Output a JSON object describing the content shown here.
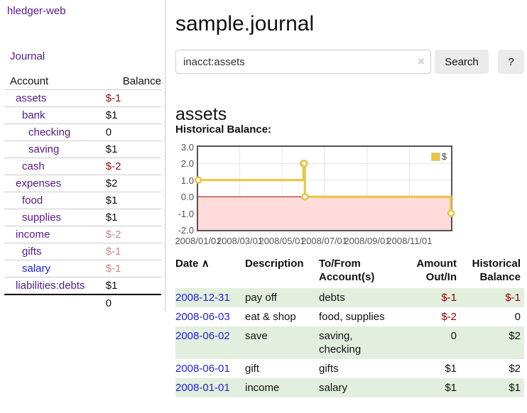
{
  "app": {
    "brand": "hledger-web",
    "nav_journal": "Journal"
  },
  "colors": {
    "visited_link_purple": "#551a8b",
    "link_blue": "#2222dd",
    "negative_strong": "#8b1414",
    "negative_muted": "#c4898c",
    "negative_table": "#8b0000",
    "row_green": "#e3efde",
    "button_gray": "#ebebeb",
    "series_yellow": "#edc240",
    "negative_region_pink": "#ffdbdb"
  },
  "sidebar": {
    "header": {
      "account": "Account",
      "balance": "Balance"
    },
    "accounts": [
      {
        "name": "assets",
        "balance": "$-1"
      },
      {
        "name": "bank",
        "balance": "$1"
      },
      {
        "name": "checking",
        "balance": "0"
      },
      {
        "name": "saving",
        "balance": "$1"
      },
      {
        "name": "cash",
        "balance": "$-2"
      },
      {
        "name": "expenses",
        "balance": "$2"
      },
      {
        "name": "food",
        "balance": "$1"
      },
      {
        "name": "supplies",
        "balance": "$1"
      },
      {
        "name": "income",
        "balance": "$-2"
      },
      {
        "name": "gifts",
        "balance": "$-1"
      },
      {
        "name": "salary",
        "balance": "$-1"
      },
      {
        "name": "liabilities:debts",
        "balance": "$1"
      }
    ],
    "total": "0"
  },
  "header": {
    "title": "sample.journal"
  },
  "search": {
    "value": "inacct:assets",
    "clear_icon": "×",
    "button_label": "Search",
    "help_label": "?"
  },
  "register": {
    "heading": "assets",
    "chart_label": "Historical Balance:",
    "table": {
      "headers": {
        "date": "Date",
        "sort_icon": "∧",
        "description": "Description",
        "accounts": "To/From Account(s)",
        "amount": "Amount Out/In",
        "balance": "Historical Balance"
      },
      "rows": [
        {
          "date": "2008-12-31",
          "description": "pay off",
          "accounts": "debts",
          "amount": "$-1",
          "balance": "$-1"
        },
        {
          "date": "2008-06-03",
          "description": "eat & shop",
          "accounts": "food, supplies",
          "amount": "$-2",
          "balance": "0"
        },
        {
          "date": "2008-06-02",
          "description": "save",
          "accounts": "saving, checking",
          "amount": "0",
          "balance": "$2"
        },
        {
          "date": "2008-06-01",
          "description": "gift",
          "accounts": "gifts",
          "amount": "$1",
          "balance": "$2"
        },
        {
          "date": "2008-01-01",
          "description": "income",
          "accounts": "salary",
          "amount": "$1",
          "balance": "$1"
        }
      ]
    }
  },
  "chart_data": {
    "type": "line",
    "title": "Historical Balance",
    "steps": true,
    "series": [
      {
        "name": "$",
        "color": "#edc240",
        "points": [
          [
            "2008-01-01",
            1
          ],
          [
            "2008-06-01",
            2
          ],
          [
            "2008-06-02",
            2
          ],
          [
            "2008-06-03",
            0
          ],
          [
            "2008-12-31",
            -1
          ]
        ]
      }
    ],
    "xrange": [
      "2008-01-01",
      "2008-12-31"
    ],
    "ylim": [
      -2,
      3
    ],
    "yticks": [
      {
        "label": "3.0",
        "value": 3
      },
      {
        "label": "2.0",
        "value": 2
      },
      {
        "label": "1.0",
        "value": 1
      },
      {
        "label": "0.0",
        "value": 0
      },
      {
        "label": "-1.0",
        "value": -1
      },
      {
        "label": "-2.0",
        "value": -2
      }
    ],
    "xticks": [
      {
        "label": "2008/01/01",
        "date": "2008-01-01"
      },
      {
        "label": "2008/03/01",
        "date": "2008-03-01"
      },
      {
        "label": "2008/05/01",
        "date": "2008-05-01"
      },
      {
        "label": "2008/07/01",
        "date": "2008-07-01"
      },
      {
        "label": "2008/09/01",
        "date": "2008-09-01"
      },
      {
        "label": "2008/11/01",
        "date": "2008-11-01"
      }
    ],
    "grid": true,
    "legend_position": "top-right",
    "negative_fill": "#ffdbdb",
    "zero_line_color": "#aa0000",
    "grid_color": "#e6e6e6",
    "border_color": "#545454"
  }
}
